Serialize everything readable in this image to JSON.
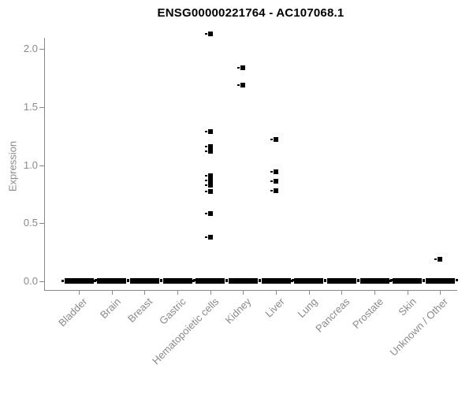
{
  "chart_data": {
    "type": "scatter",
    "title": "ENSG00000221764 - AC107068.1",
    "xlabel": "",
    "ylabel": "Expression",
    "ylim": [
      0,
      2.15
    ],
    "grid": false,
    "legend": false,
    "marker_style": "small-black-square-with-left-dash",
    "yticks": [
      {
        "value": 0.0,
        "label": "0.0"
      },
      {
        "value": 0.5,
        "label": "0.5"
      },
      {
        "value": 1.0,
        "label": "1.0"
      },
      {
        "value": 1.5,
        "label": "1.5"
      },
      {
        "value": 2.0,
        "label": "2.0"
      }
    ],
    "categories": [
      "Bladder",
      "Brain",
      "Breast",
      "Gastric",
      "Hematopoietic cells",
      "Kidney",
      "Liver",
      "Lung",
      "Pancreas",
      "Prostate",
      "Skin",
      "Unknown / Other"
    ],
    "series": [
      {
        "category": "Bladder",
        "zero_cluster": true,
        "nonzero_values": []
      },
      {
        "category": "Brain",
        "zero_cluster": true,
        "nonzero_values": []
      },
      {
        "category": "Breast",
        "zero_cluster": true,
        "nonzero_values": []
      },
      {
        "category": "Gastric",
        "zero_cluster": true,
        "nonzero_values": []
      },
      {
        "category": "Hematopoietic cells",
        "zero_cluster": true,
        "nonzero_values": [
          2.13,
          1.29,
          1.16,
          1.12,
          0.91,
          0.87,
          0.83,
          0.77,
          0.58,
          0.38
        ]
      },
      {
        "category": "Kidney",
        "zero_cluster": true,
        "nonzero_values": [
          1.84,
          1.69
        ]
      },
      {
        "category": "Liver",
        "zero_cluster": true,
        "nonzero_values": [
          1.22,
          0.94,
          0.86,
          0.78
        ]
      },
      {
        "category": "Lung",
        "zero_cluster": true,
        "nonzero_values": []
      },
      {
        "category": "Pancreas",
        "zero_cluster": true,
        "nonzero_values": []
      },
      {
        "category": "Prostate",
        "zero_cluster": true,
        "nonzero_values": []
      },
      {
        "category": "Skin",
        "zero_cluster": true,
        "nonzero_values": []
      },
      {
        "category": "Unknown / Other",
        "zero_cluster": true,
        "nonzero_values": [
          0.19
        ]
      }
    ]
  },
  "colors": {
    "axis": "#888888",
    "tick_text": "#8a8a8a",
    "marker": "#000000",
    "title_text": "#000000",
    "background": "#ffffff"
  }
}
